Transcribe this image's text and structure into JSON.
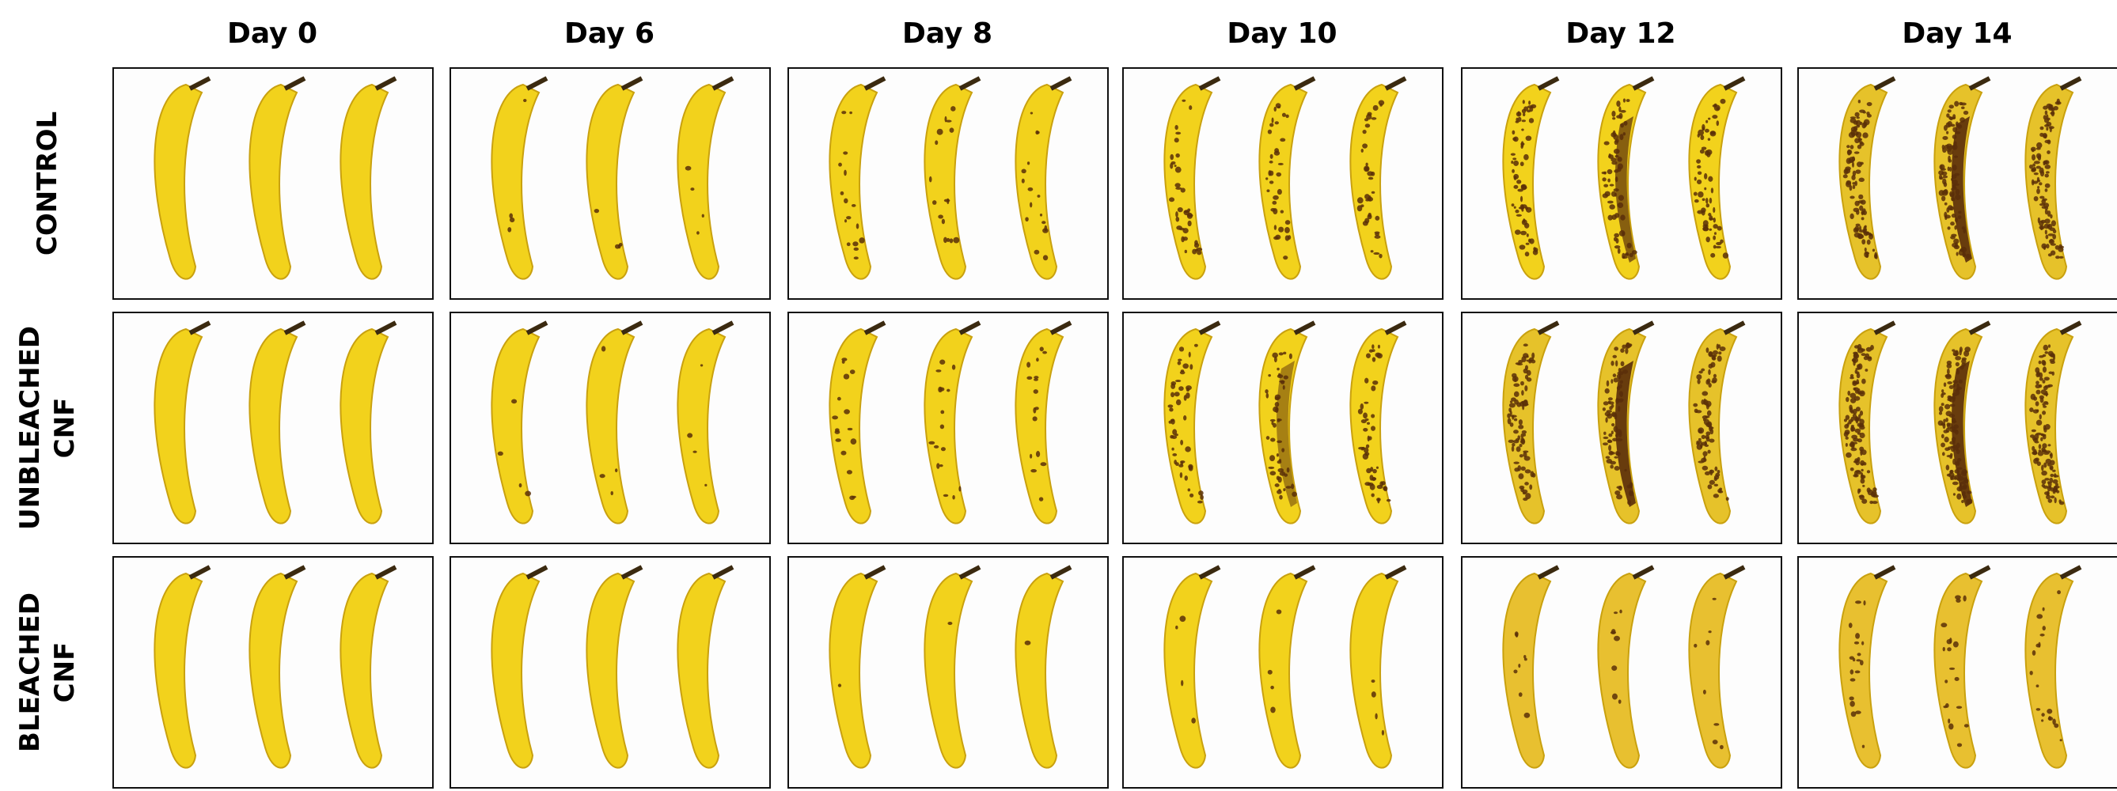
{
  "columns": [
    {
      "label": "Day 0"
    },
    {
      "label": "Day 6"
    },
    {
      "label": "Day 8"
    },
    {
      "label": "Day 10"
    },
    {
      "label": "Day 12"
    },
    {
      "label": "Day 14"
    }
  ],
  "rows": [
    {
      "line1": "CONTROL",
      "line2": ""
    },
    {
      "line1": "UNBLEACHED",
      "line2": "CNF"
    },
    {
      "line1": "BLEACHED",
      "line2": "CNF"
    }
  ],
  "colors": {
    "banana": "#f2d21c",
    "spot": "#5a3008",
    "stem": "#3b2a10",
    "frame": "#111111"
  }
}
